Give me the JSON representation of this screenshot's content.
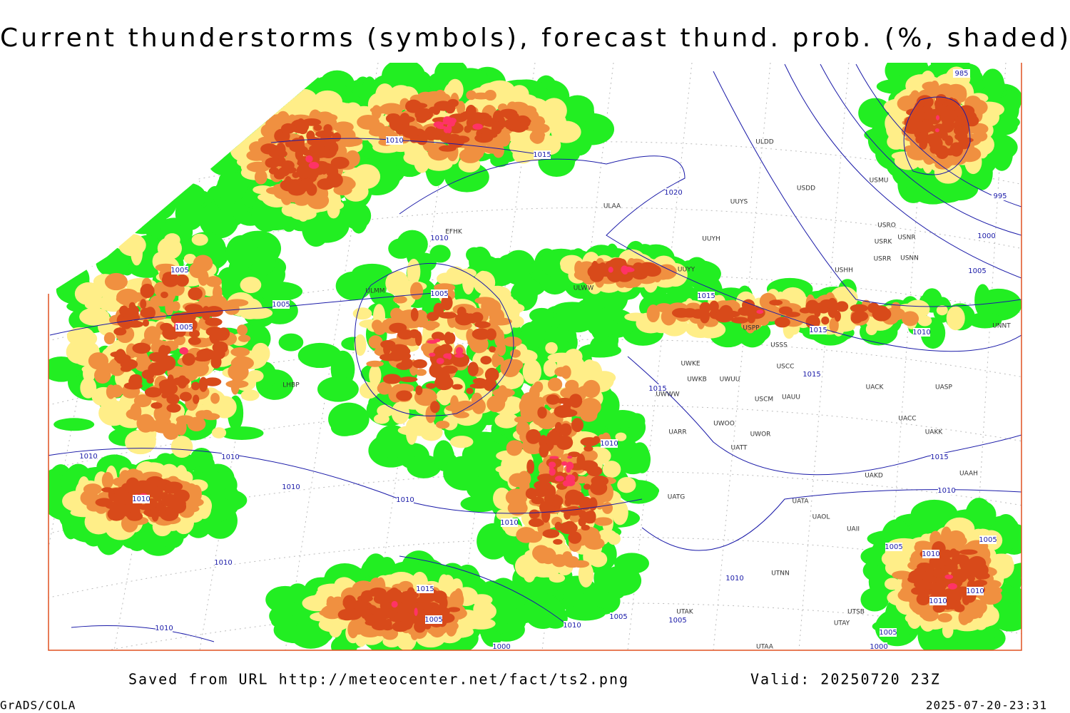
{
  "header": {
    "title": "Current thunderstorms (symbols), forecast thund. prob. (%, shaded)"
  },
  "map": {
    "isobar_labels": [
      985,
      1010,
      1015,
      1020,
      1010,
      1005,
      1005,
      1005,
      1005,
      1015,
      1015,
      1010,
      1015,
      1015,
      1010,
      1010,
      1010,
      1015,
      1010,
      1010,
      1010,
      1010,
      1010,
      1005,
      1005,
      1010,
      1010,
      1010,
      1015,
      1010,
      1010,
      1005,
      1005,
      1005,
      1010,
      1010,
      1005,
      1000,
      1000,
      995,
      1000,
      1005
    ],
    "stations": [
      "ULDD",
      "USDD",
      "ULAA",
      "UUYS",
      "USMU",
      "USRO",
      "USRK",
      "USNR",
      "USRR",
      "USNN",
      "USHH",
      "UUYH",
      "UUYY",
      "ULWW",
      "USPP",
      "USSS",
      "USCC",
      "UWKE",
      "UWKB",
      "UWUU",
      "UACK",
      "UASP",
      "USCM",
      "UAUU",
      "UWWW",
      "UACC",
      "UAKK",
      "UWOO",
      "UWOR",
      "UARR",
      "UATT",
      "UAKD",
      "UAAH",
      "UATG",
      "UATA",
      "UAOL",
      "UAII",
      "UTNN",
      "UTAK",
      "UTSB",
      "UTAY",
      "UTAA",
      "UNNT",
      "EFHK",
      "LHBP",
      "ULMM"
    ]
  },
  "footer": {
    "source": "Saved from URL http://meteocenter.net/fact/ts2.png",
    "valid": "Valid: 20250720 23Z",
    "software": "GrADS/COLA",
    "timestamp": "2025-07-20-23:31"
  }
}
